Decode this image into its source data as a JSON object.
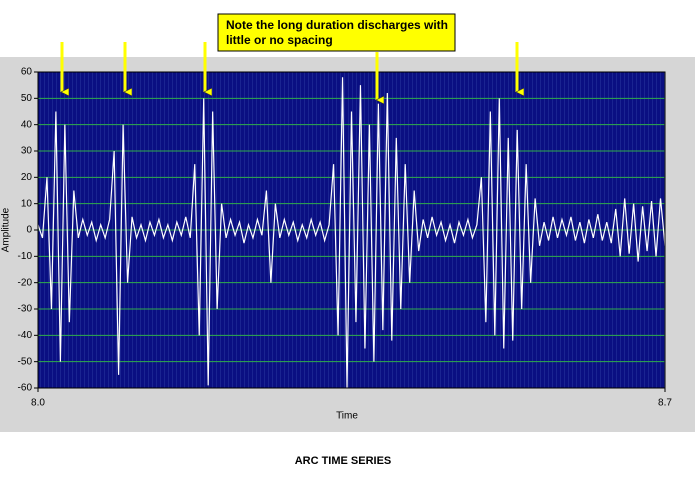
{
  "chart_data": {
    "type": "line",
    "title": "ARC TIME SERIES",
    "x_label": "Time",
    "y_label": "Amplitude",
    "annotation": [
      "Note the long duration discharges with",
      "little or no spacing"
    ],
    "xlim": [
      8,
      8.7
    ],
    "xticks": [
      {
        "value": 8,
        "label": "8.0"
      },
      8.7
    ],
    "ylim": [
      -60,
      60
    ],
    "yticks": [
      60,
      50,
      40,
      30,
      20,
      10,
      0,
      -10,
      -20,
      -30,
      -40,
      -50,
      -60
    ],
    "grid": true,
    "background": "#0a0f82",
    "grid_color": "#2fae4a",
    "x": [
      8,
      8.005,
      8.01,
      8.015,
      8.02,
      8.025,
      8.03,
      8.035,
      8.04,
      8.045,
      8.05,
      8.055,
      8.06,
      8.065,
      8.07,
      8.075,
      8.08,
      8.085,
      8.09,
      8.095,
      8.1,
      8.105,
      8.11,
      8.115,
      8.12,
      8.125,
      8.13,
      8.135,
      8.14,
      8.145,
      8.15,
      8.155,
      8.16,
      8.165,
      8.17,
      8.175,
      8.18,
      8.185,
      8.19,
      8.195,
      8.2,
      8.205,
      8.21,
      8.215,
      8.22,
      8.225,
      8.23,
      8.235,
      8.24,
      8.245,
      8.25,
      8.255,
      8.26,
      8.265,
      8.27,
      8.275,
      8.28,
      8.285,
      8.29,
      8.295,
      8.3,
      8.305,
      8.31,
      8.315,
      8.32,
      8.325,
      8.33,
      8.335,
      8.34,
      8.345,
      8.35,
      8.355,
      8.36,
      8.365,
      8.37,
      8.375,
      8.38,
      8.385,
      8.39,
      8.395,
      8.4,
      8.405,
      8.41,
      8.415,
      8.42,
      8.425,
      8.43,
      8.435,
      8.44,
      8.445,
      8.45,
      8.455,
      8.46,
      8.465,
      8.47,
      8.475,
      8.48,
      8.485,
      8.49,
      8.495,
      8.5,
      8.505,
      8.51,
      8.515,
      8.52,
      8.525,
      8.53,
      8.535,
      8.54,
      8.545,
      8.55,
      8.555,
      8.56,
      8.565,
      8.57,
      8.575,
      8.58,
      8.585,
      8.59,
      8.595,
      8.6,
      8.605,
      8.61,
      8.615,
      8.62,
      8.625,
      8.63,
      8.635,
      8.64,
      8.645,
      8.65,
      8.655,
      8.66,
      8.665,
      8.67,
      8.675,
      8.68,
      8.685,
      8.69,
      8.695,
      8.7
    ],
    "series": [
      {
        "name": "Amplitude",
        "color": "#ffffff",
        "values": [
          2,
          -3,
          20,
          -30,
          45,
          -50,
          40,
          -35,
          15,
          -3,
          4,
          -2,
          3,
          -4,
          2,
          -3,
          4,
          30,
          -55,
          40,
          -20,
          5,
          -3,
          2,
          -4,
          3,
          -2,
          4,
          -3,
          2,
          -4,
          3,
          -2,
          5,
          -3,
          25,
          -40,
          50,
          -59,
          45,
          -30,
          10,
          -3,
          4,
          -2,
          3,
          -5,
          2,
          -3,
          4,
          -2,
          15,
          -20,
          10,
          -3,
          4,
          -2,
          3,
          -4,
          2,
          -3,
          4,
          -2,
          3,
          -4,
          2,
          25,
          -40,
          58,
          -60,
          45,
          -35,
          55,
          -45,
          40,
          -50,
          48,
          -38,
          52,
          -42,
          35,
          -30,
          25,
          -20,
          15,
          -8,
          4,
          -3,
          5,
          -2,
          3,
          -4,
          2,
          -5,
          3,
          -2,
          4,
          -3,
          2,
          20,
          -35,
          45,
          -40,
          50,
          -45,
          35,
          -42,
          38,
          -30,
          25,
          -20,
          12,
          -6,
          3,
          -4,
          5,
          -3,
          4,
          -2,
          5,
          -4,
          3,
          -5,
          4,
          -3,
          6,
          -4,
          3,
          -5,
          8,
          -10,
          12,
          -9,
          10,
          -12,
          9,
          -8,
          11,
          -10,
          12,
          -6
        ]
      }
    ]
  }
}
